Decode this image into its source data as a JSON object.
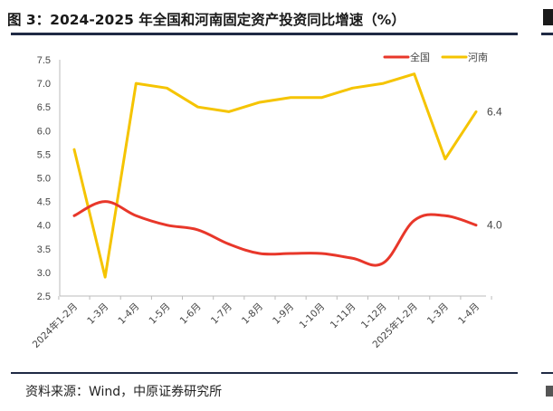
{
  "title": "图 3：2024-2025 年全国和河南固定资产投资同比增速（%）",
  "source": "资料来源：Wind，中原证券研究所",
  "chart_data": {
    "type": "line",
    "title": "图 3：2024-2025 年全国和河南固定资产投资同比增速（%）",
    "xlabel": "",
    "ylabel": "",
    "categories": [
      "2024年1-2月",
      "1-3月",
      "1-4月",
      "1-5月",
      "1-6月",
      "1-7月",
      "1-8月",
      "1-9月",
      "1-10月",
      "1-11月",
      "1-12月",
      "2025年1-2月",
      "1-3月",
      "1-4月"
    ],
    "ylim": [
      2.5,
      7.5
    ],
    "yticks": [
      "2.5",
      "3.0",
      "3.5",
      "4.0",
      "4.5",
      "5.0",
      "5.5",
      "6.0",
      "6.5",
      "7.0",
      "7.5"
    ],
    "grid": false,
    "legend": "top-right",
    "series": [
      {
        "name": "全国",
        "color": "#e8372a",
        "smooth": true,
        "values": [
          4.2,
          4.5,
          4.2,
          4.0,
          3.9,
          3.6,
          3.4,
          3.4,
          3.4,
          3.3,
          3.2,
          4.1,
          4.2,
          4.0
        ],
        "end_label": "4.0"
      },
      {
        "name": "河南",
        "color": "#f5c400",
        "smooth": false,
        "values": [
          5.6,
          2.9,
          7.0,
          6.9,
          6.5,
          6.4,
          6.6,
          6.7,
          6.7,
          6.9,
          7.0,
          7.2,
          5.4,
          6.4
        ],
        "end_label": "6.4"
      }
    ]
  }
}
